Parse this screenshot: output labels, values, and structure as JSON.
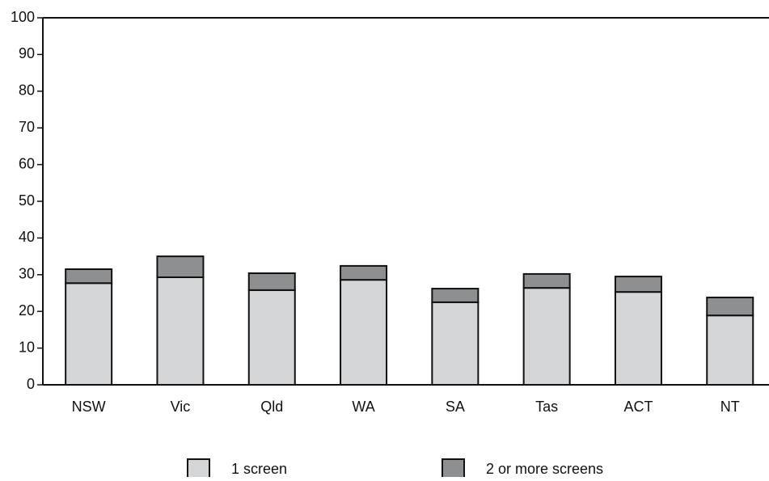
{
  "chart_data": {
    "type": "stacked_bar",
    "categories": [
      "NSW",
      "Vic",
      "Qld",
      "WA",
      "SA",
      "Tas",
      "ACT",
      "NT"
    ],
    "series": [
      {
        "name": "1 screen",
        "color": "#d4d5d7",
        "values": [
          27.7,
          29.3,
          25.8,
          28.6,
          22.5,
          26.4,
          25.3,
          18.9
        ]
      },
      {
        "name": "2 or more screens",
        "color": "#8e8f91",
        "values": [
          3.8,
          5.7,
          4.6,
          3.8,
          3.7,
          3.8,
          4.2,
          4.9
        ]
      }
    ],
    "ylim": [
      0,
      100
    ],
    "yticks": [
      0,
      10,
      20,
      30,
      40,
      50,
      60,
      70,
      80,
      90,
      100
    ]
  }
}
